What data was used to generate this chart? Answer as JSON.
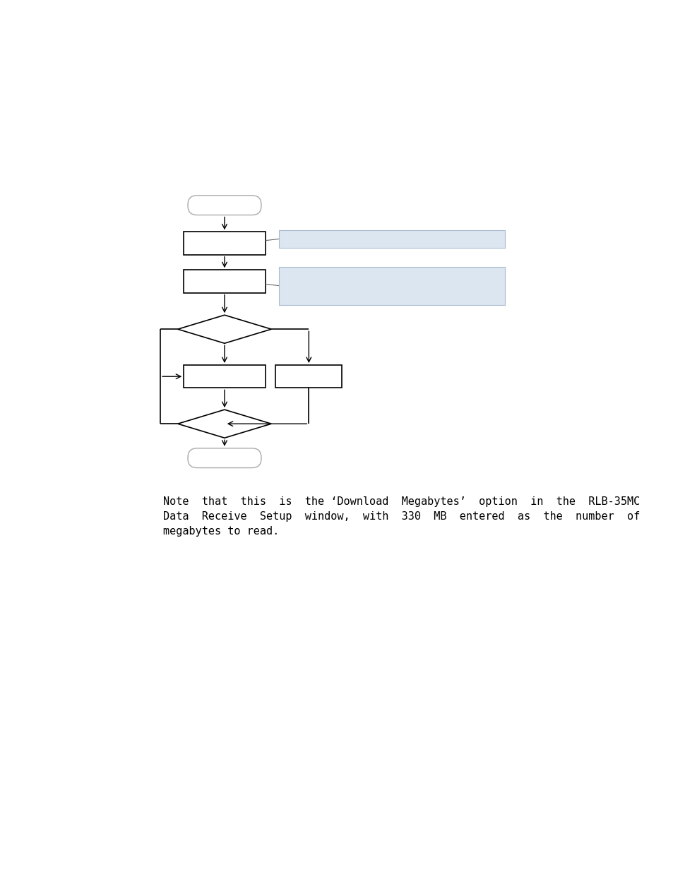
{
  "bg_color": "#ffffff",
  "note_text": "Note  that  this  is  the ‘Download  Megabytes’  option  in  the  RLB-35MC\nData  Receive  Setup  window,  with  330  MB  entered  as  the  number  of\nmegabytes to read.",
  "note_fontsize": 11.0,
  "flowchart": {
    "start_end_color": "#ffffff",
    "start_end_border": "#aaaaaa",
    "box_color": "#ffffff",
    "box_border": "#000000",
    "diamond_color": "#ffffff",
    "diamond_border": "#000000",
    "callout_color1": "#dce6f1",
    "callout_color2": "#dce6f1",
    "callout_border": "#aabbd0",
    "arrow_color": "#000000",
    "line_color": "#000000"
  }
}
